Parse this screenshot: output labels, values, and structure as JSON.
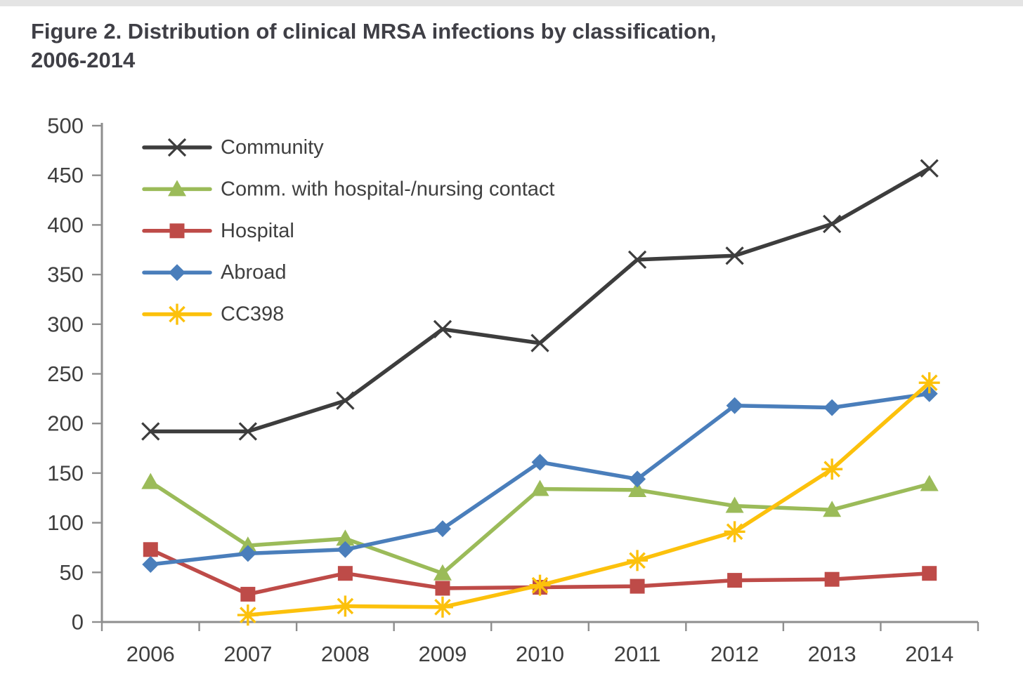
{
  "header": {
    "title_line1": "Figure 2. Distribution of clinical MRSA infections by classification,",
    "title_line2": "2006-2014"
  },
  "colors": {
    "title_text": "#3f3f46",
    "axis_line": "#8e8e8e",
    "tick_label": "#3f3f3f",
    "legend_label": "#3f3f3f",
    "background": "#ffffff"
  },
  "chart_data": {
    "type": "line",
    "title": "Figure 2. Distribution of clinical MRSA infections by classification, 2006-2014",
    "xlabel": "",
    "ylabel": "",
    "categories": [
      "2006",
      "2007",
      "2008",
      "2009",
      "2010",
      "2011",
      "2012",
      "2013",
      "2014"
    ],
    "yticks": [
      0,
      50,
      100,
      150,
      200,
      250,
      300,
      350,
      400,
      450,
      500
    ],
    "ylim": [
      0,
      500
    ],
    "grid": false,
    "legend_position": "top-left-inside",
    "series": [
      {
        "name": "Community",
        "color": "#3d3d3d",
        "marker": "x",
        "values": [
          192,
          192,
          223,
          295,
          281,
          365,
          369,
          401,
          457
        ]
      },
      {
        "name": "Comm. with hospital-/nursing contact",
        "color": "#9bbb59",
        "marker": "triangle",
        "values": [
          141,
          77,
          84,
          49,
          134,
          133,
          117,
          113,
          139
        ]
      },
      {
        "name": "Hospital",
        "color": "#be4b48",
        "marker": "square",
        "values": [
          73,
          28,
          49,
          34,
          35,
          36,
          42,
          43,
          49
        ]
      },
      {
        "name": "Abroad",
        "color": "#4a7ebb",
        "marker": "diamond",
        "values": [
          58,
          69,
          73,
          94,
          161,
          144,
          218,
          216,
          230
        ]
      },
      {
        "name": "CC398",
        "color": "#fcc10c",
        "marker": "asterisk",
        "values": [
          null,
          7,
          16,
          15,
          37,
          62,
          91,
          154,
          241
        ]
      }
    ]
  }
}
